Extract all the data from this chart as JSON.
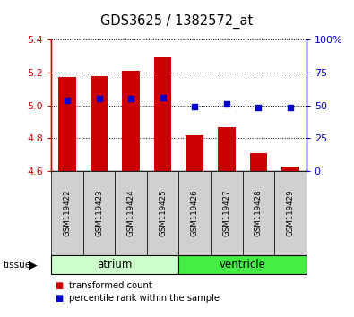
{
  "title": "GDS3625 / 1382572_at",
  "samples": [
    "GSM119422",
    "GSM119423",
    "GSM119424",
    "GSM119425",
    "GSM119426",
    "GSM119427",
    "GSM119428",
    "GSM119429"
  ],
  "red_values": [
    5.17,
    5.18,
    5.21,
    5.29,
    4.82,
    4.87,
    4.71,
    4.63
  ],
  "blue_values": [
    5.03,
    5.04,
    5.04,
    5.05,
    4.995,
    5.01,
    4.99,
    4.99
  ],
  "ymin": 4.6,
  "ymax": 5.4,
  "y2min": 0,
  "y2max": 100,
  "yticks": [
    4.6,
    4.8,
    5.0,
    5.2,
    5.4
  ],
  "y2ticks": [
    0,
    25,
    50,
    75,
    100
  ],
  "bar_color": "#cc0000",
  "dot_color": "#0000cc",
  "bar_width": 0.55,
  "atrium_color": "#ccffcc",
  "ventricle_color": "#44ee44",
  "gray_color": "#d0d0d0",
  "left_axis_color": "#cc0000",
  "right_axis_color": "#0000cc",
  "background_color": "#ffffff"
}
